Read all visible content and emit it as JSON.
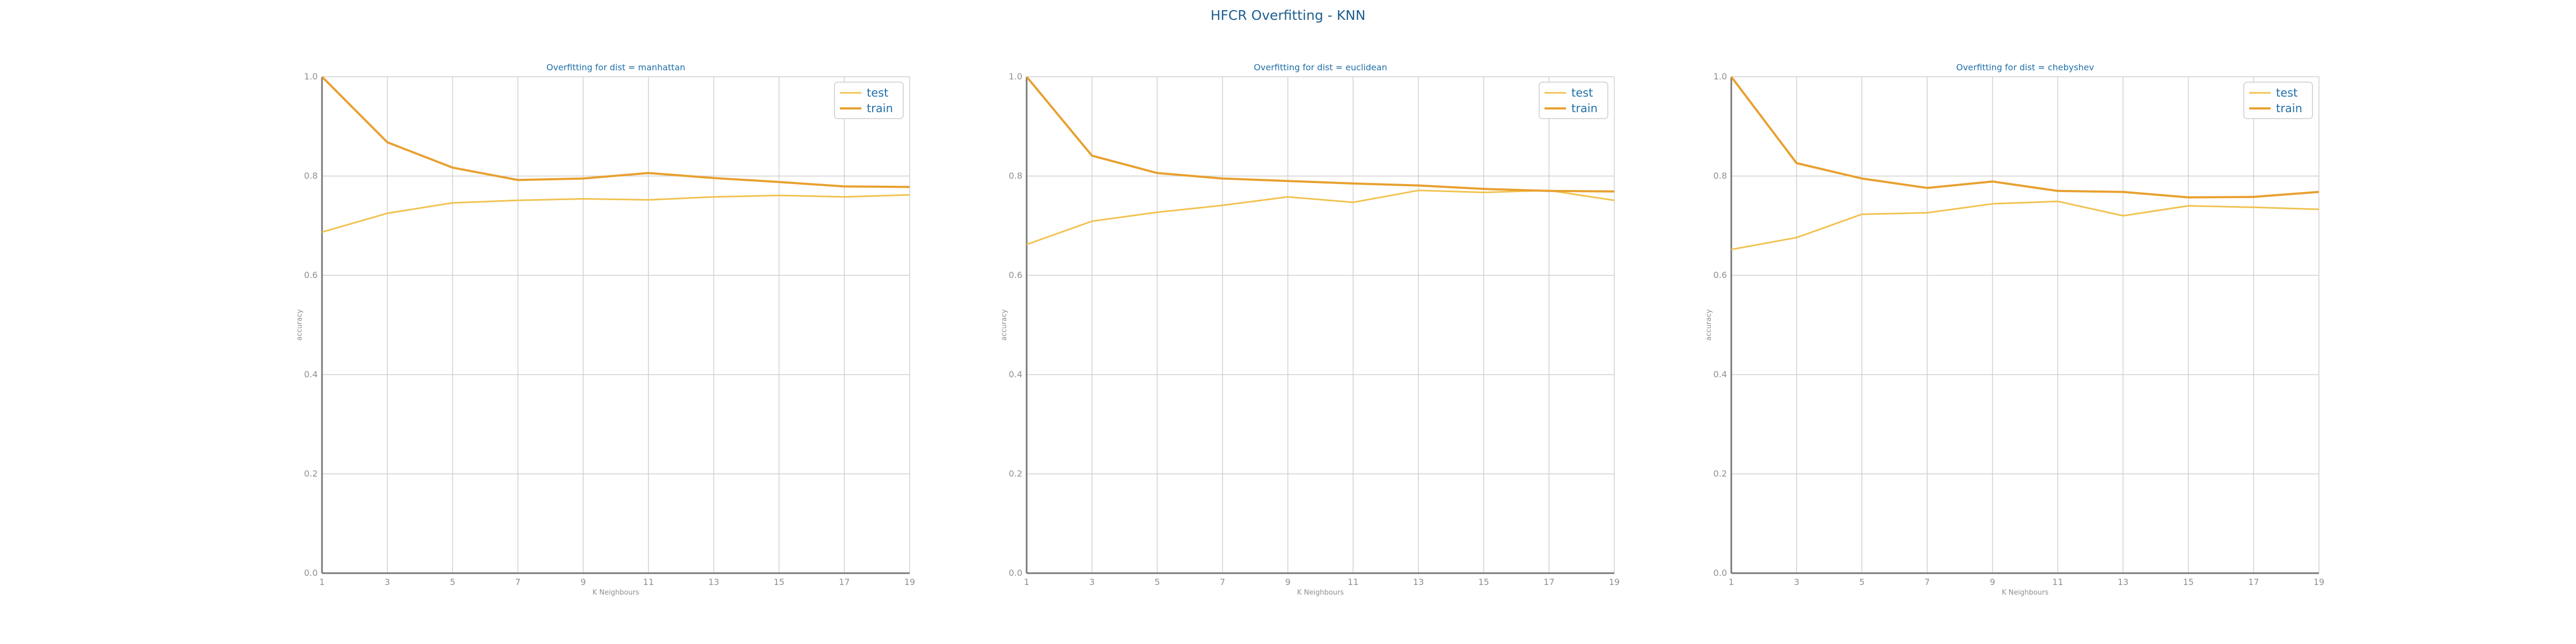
{
  "figure": {
    "title": "HFCR Overfitting - KNN"
  },
  "colors": {
    "test": "#f1c24f",
    "train": "#e8a030",
    "grid": "#d0d0d0",
    "axis": "#777777",
    "text": "#1f6fa8"
  },
  "chart_data": [
    {
      "type": "line",
      "title": "Overfitting for dist = manhattan",
      "xlabel": "K Neighbours",
      "ylabel": "accuracy",
      "x": [
        1,
        3,
        5,
        7,
        9,
        11,
        13,
        15,
        17,
        19
      ],
      "xticks": [
        "1",
        "3",
        "5",
        "7",
        "9",
        "11",
        "13",
        "15",
        "17",
        "19"
      ],
      "yticks": [
        "0.0",
        "0.2",
        "0.4",
        "0.6",
        "0.8",
        "1.0"
      ],
      "ylim": [
        0,
        1
      ],
      "grid": true,
      "legend_position": "top-right",
      "series": [
        {
          "name": "test",
          "values": [
            0.687,
            0.725,
            0.746,
            0.751,
            0.754,
            0.752,
            0.758,
            0.761,
            0.758,
            0.762
          ]
        },
        {
          "name": "train",
          "values": [
            1.0,
            0.868,
            0.817,
            0.792,
            0.795,
            0.806,
            0.796,
            0.788,
            0.779,
            0.778
          ]
        }
      ]
    },
    {
      "type": "line",
      "title": "Overfitting for dist = euclidean",
      "xlabel": "K Neighbours",
      "ylabel": "accuracy",
      "x": [
        1,
        3,
        5,
        7,
        9,
        11,
        13,
        15,
        17,
        19
      ],
      "xticks": [
        "1",
        "3",
        "5",
        "7",
        "9",
        "11",
        "13",
        "15",
        "17",
        "19"
      ],
      "yticks": [
        "0.0",
        "0.2",
        "0.4",
        "0.6",
        "0.8",
        "1.0"
      ],
      "ylim": [
        0,
        1
      ],
      "grid": true,
      "legend_position": "top-right",
      "series": [
        {
          "name": "test",
          "values": [
            0.662,
            0.709,
            0.727,
            0.741,
            0.758,
            0.747,
            0.771,
            0.767,
            0.771,
            0.751
          ]
        },
        {
          "name": "train",
          "values": [
            1.0,
            0.841,
            0.806,
            0.795,
            0.79,
            0.785,
            0.781,
            0.774,
            0.77,
            0.769
          ]
        }
      ]
    },
    {
      "type": "line",
      "title": "Overfitting for dist = chebyshev",
      "xlabel": "K Neighbours",
      "ylabel": "accuracy",
      "x": [
        1,
        3,
        5,
        7,
        9,
        11,
        13,
        15,
        17,
        19
      ],
      "xticks": [
        "1",
        "3",
        "5",
        "7",
        "9",
        "11",
        "13",
        "15",
        "17",
        "19"
      ],
      "yticks": [
        "0.0",
        "0.2",
        "0.4",
        "0.6",
        "0.8",
        "1.0"
      ],
      "ylim": [
        0,
        1
      ],
      "grid": true,
      "legend_position": "top-right",
      "series": [
        {
          "name": "test",
          "values": [
            0.652,
            0.676,
            0.723,
            0.726,
            0.744,
            0.749,
            0.72,
            0.74,
            0.737,
            0.733
          ]
        },
        {
          "name": "train",
          "values": [
            1.0,
            0.826,
            0.795,
            0.776,
            0.789,
            0.77,
            0.768,
            0.757,
            0.758,
            0.768
          ]
        }
      ]
    }
  ]
}
